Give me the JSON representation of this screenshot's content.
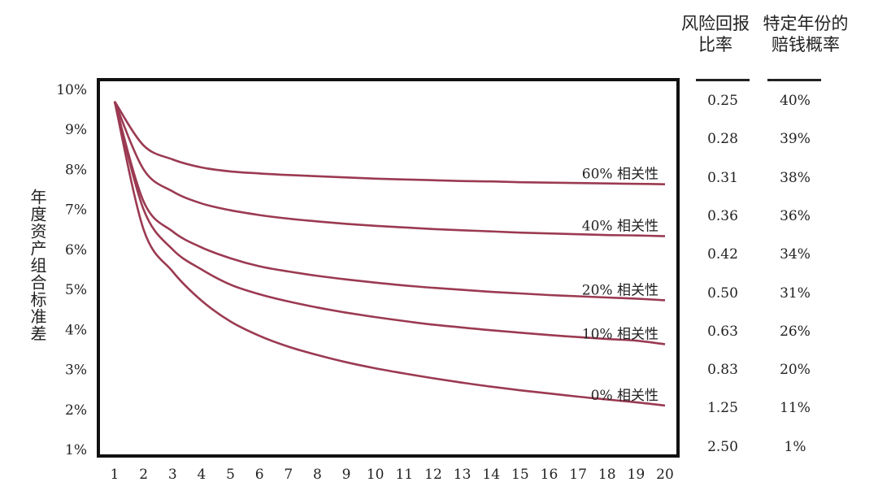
{
  "chart_data": {
    "type": "line",
    "ylabel": "年度资产组合标准差",
    "x": [
      1,
      2,
      3,
      4,
      5,
      6,
      7,
      8,
      9,
      10,
      11,
      12,
      13,
      14,
      15,
      16,
      17,
      18,
      19,
      20
    ],
    "xticks": [
      "1",
      "2",
      "3",
      "4",
      "5",
      "6",
      "7",
      "8",
      "9",
      "10",
      "11",
      "12",
      "13",
      "14",
      "15",
      "16",
      "17",
      "18",
      "19",
      "20"
    ],
    "yticks": [
      "1%",
      "2%",
      "3%",
      "4%",
      "5%",
      "6%",
      "7%",
      "8%",
      "9%",
      "10%"
    ],
    "ylim": [
      1,
      10
    ],
    "line_color": "#9b3a52",
    "series": [
      {
        "name": "60% 相关性",
        "values": [
          9.7,
          8.6,
          8.25,
          8.05,
          7.95,
          7.9,
          7.86,
          7.83,
          7.8,
          7.77,
          7.75,
          7.73,
          7.71,
          7.7,
          7.68,
          7.67,
          7.66,
          7.65,
          7.64,
          7.63
        ]
      },
      {
        "name": "40% 相关性",
        "values": [
          9.7,
          8.0,
          7.45,
          7.15,
          6.98,
          6.86,
          6.77,
          6.7,
          6.64,
          6.59,
          6.55,
          6.51,
          6.48,
          6.45,
          6.42,
          6.4,
          6.38,
          6.36,
          6.35,
          6.33
        ]
      },
      {
        "name": "20% 相关性",
        "values": [
          9.7,
          7.2,
          6.45,
          6.05,
          5.78,
          5.58,
          5.45,
          5.34,
          5.25,
          5.17,
          5.1,
          5.04,
          4.99,
          4.94,
          4.9,
          4.86,
          4.83,
          4.8,
          4.77,
          4.73
        ]
      },
      {
        "name": "10% 相关性",
        "values": [
          9.7,
          7.0,
          6.0,
          5.5,
          5.12,
          4.88,
          4.7,
          4.55,
          4.42,
          4.31,
          4.21,
          4.12,
          4.05,
          3.98,
          3.92,
          3.86,
          3.81,
          3.76,
          3.72,
          3.63
        ]
      },
      {
        "name": "0% 相关性",
        "values": [
          9.7,
          6.5,
          5.45,
          4.72,
          4.2,
          3.84,
          3.57,
          3.36,
          3.18,
          3.03,
          2.9,
          2.78,
          2.67,
          2.57,
          2.48,
          2.4,
          2.32,
          2.25,
          2.18,
          2.1
        ]
      }
    ]
  },
  "table": {
    "col1_header": [
      "风险回报",
      "比率"
    ],
    "col2_header": [
      "特定年份的",
      "赔钱概率"
    ],
    "rows": [
      [
        "0.25",
        "40%"
      ],
      [
        "0.28",
        "39%"
      ],
      [
        "0.31",
        "38%"
      ],
      [
        "0.36",
        "36%"
      ],
      [
        "0.42",
        "34%"
      ],
      [
        "0.50",
        "31%"
      ],
      [
        "0.63",
        "26%"
      ],
      [
        "0.83",
        "20%"
      ],
      [
        "1.25",
        "11%"
      ],
      [
        "2.50",
        "1%"
      ]
    ]
  }
}
